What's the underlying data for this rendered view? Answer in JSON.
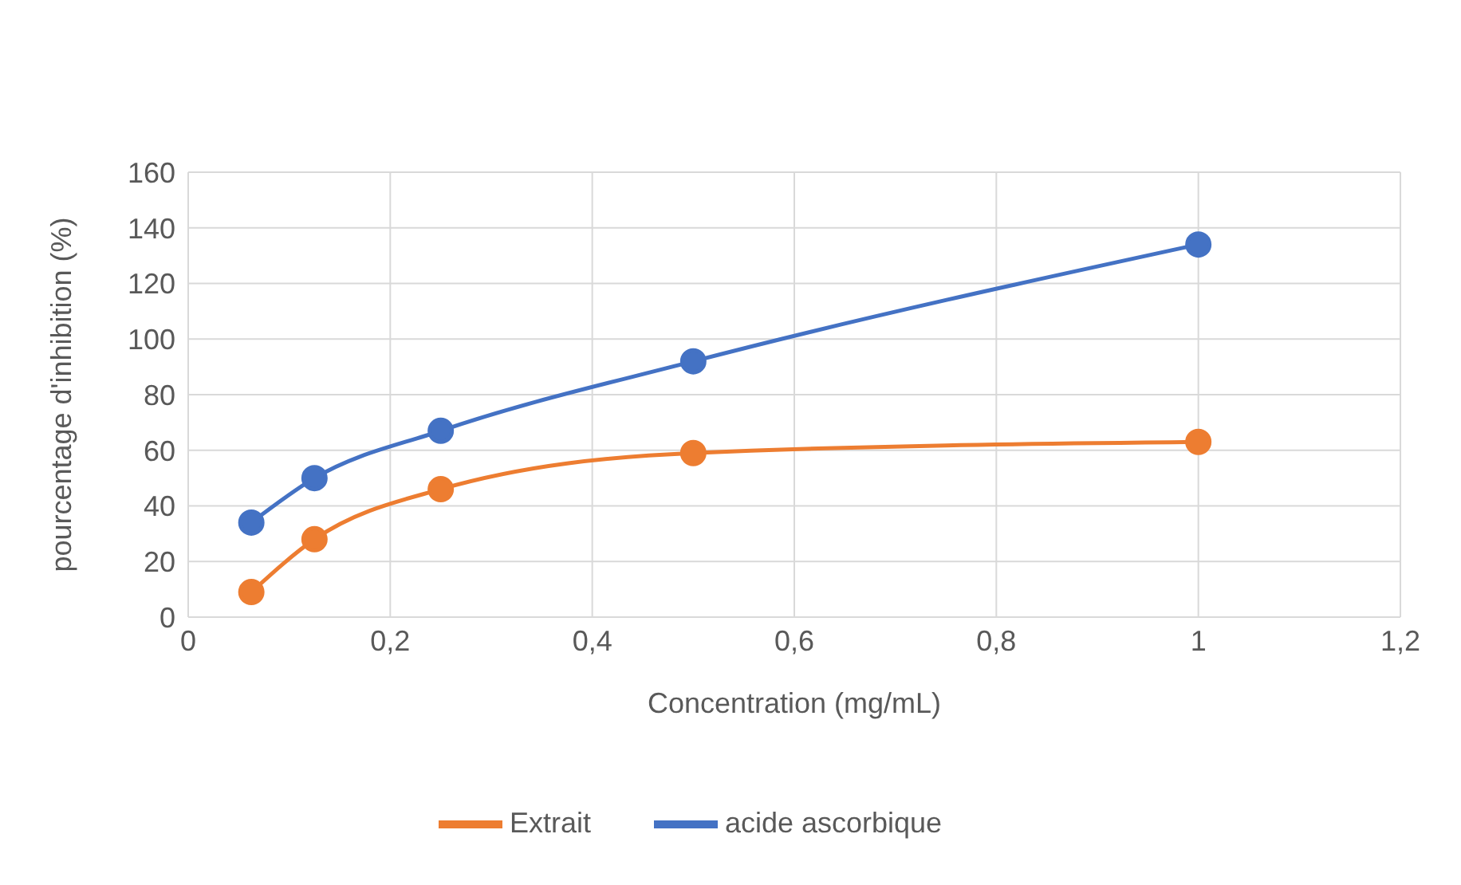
{
  "chart_data": {
    "type": "line",
    "xlabel": "Concentration (mg/mL)",
    "ylabel": "pourcentage d'inhibition (%)",
    "xlim": [
      0,
      1.2
    ],
    "xticks": [
      0,
      {
        "value": 0.2,
        "label": "0,2"
      },
      {
        "value": 0.4,
        "label": "0,4"
      },
      {
        "value": 0.6,
        "label": "0,6"
      },
      {
        "value": 0.8,
        "label": "0,8"
      },
      1,
      {
        "value": 1.2,
        "label": "1,2"
      }
    ],
    "ylim": [
      0,
      160
    ],
    "yticks": [
      0,
      20,
      40,
      60,
      80,
      100,
      120,
      140,
      160
    ],
    "x": [
      0.0625,
      0.125,
      0.25,
      0.5,
      1
    ],
    "series": [
      {
        "name": "acide ascorbique",
        "color": "#4472c4",
        "values": [
          34,
          50,
          67,
          92,
          134
        ]
      },
      {
        "name": "Extrait",
        "color": "#ed7d31",
        "values": [
          9,
          28,
          46,
          59,
          63
        ]
      }
    ],
    "grid": true,
    "legend": "bottom",
    "marker": "circle",
    "line_style": "solid"
  }
}
